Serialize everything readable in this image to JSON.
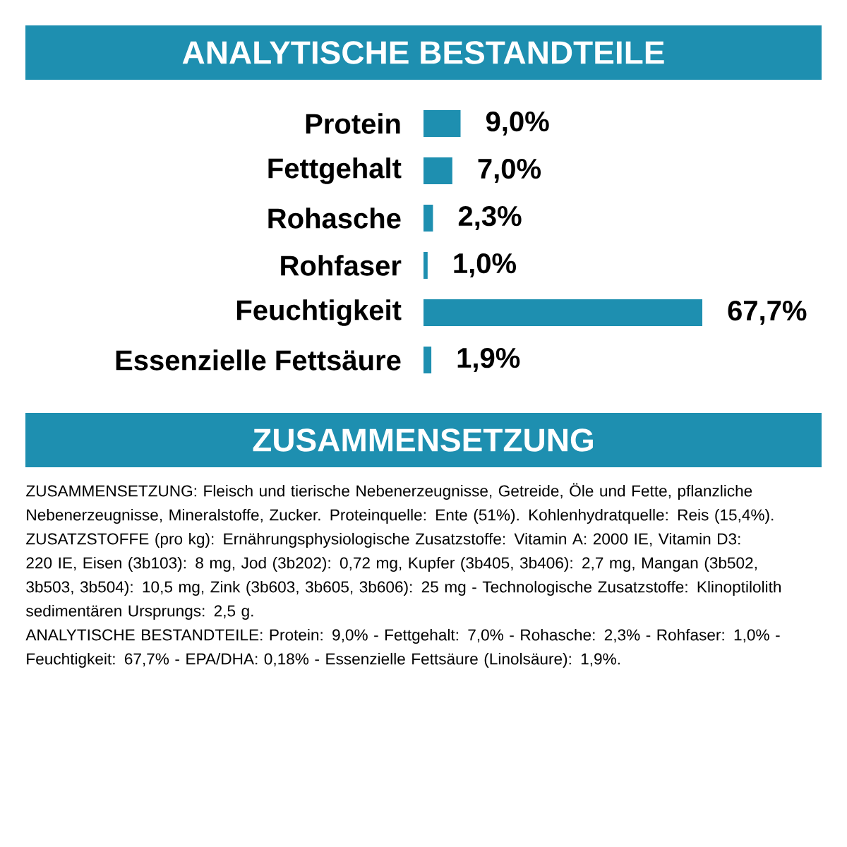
{
  "chart_data": {
    "type": "bar",
    "orientation": "horizontal",
    "title": "ANALYTISCHE BESTANDTEILE",
    "categories": [
      "Protein",
      "Fettgehalt",
      "Rohasche",
      "Rohfaser",
      "Feuchtigkeit",
      "Essenzielle Fettsäure"
    ],
    "values": [
      9.0,
      7.0,
      2.3,
      1.0,
      67.7,
      1.9
    ],
    "value_labels": [
      "9,0%",
      "7,0%",
      "2,3%",
      "1,0%",
      "67,7%",
      "1,9%"
    ],
    "color": "#1e8fb0",
    "annotations": [
      "ZUSAMMENSETZUNG",
      "ZUSAMMENSETZUNG: Fleisch und tierische Nebenerzeugnisse, Getreide, Öle und Fette, pflanzliche Nebenerzeugnisse, Mineralstoffe, Zucker. Proteinquelle: Ente (51%). Kohlenhydratquelle: Reis (15,4%).",
      "ZUSATZSTOFFE (pro kg): Ernährungsphysiologische Zusatzstoffe: Vitamin A: 2000 IE, Vitamin D3: 220 IE, Eisen (3b103): 8 mg, Jod (3b202): 0,72 mg, Kupfer (3b405, 3b406): 2,7 mg, Mangan (3b502, 3b503, 3b504): 10,5 mg, Zink (3b603, 3b605, 3b606): 25 mg - Technologische Zusatzstoffe: Klinoptilolith sedimentären Ursprungs: 2,5 g.",
      "ANALYTISCHE BESTANDTEILE: Protein: 9,0% - Fettgehalt: 7,0% - Rohasche: 2,3% - Rohfaser: 1,0% - Feuchtigkeit: 67,7% - EPA/DHA: 0,18% - Essenzielle Fettsäure (Linolsäure): 1,9%."
    ]
  }
}
